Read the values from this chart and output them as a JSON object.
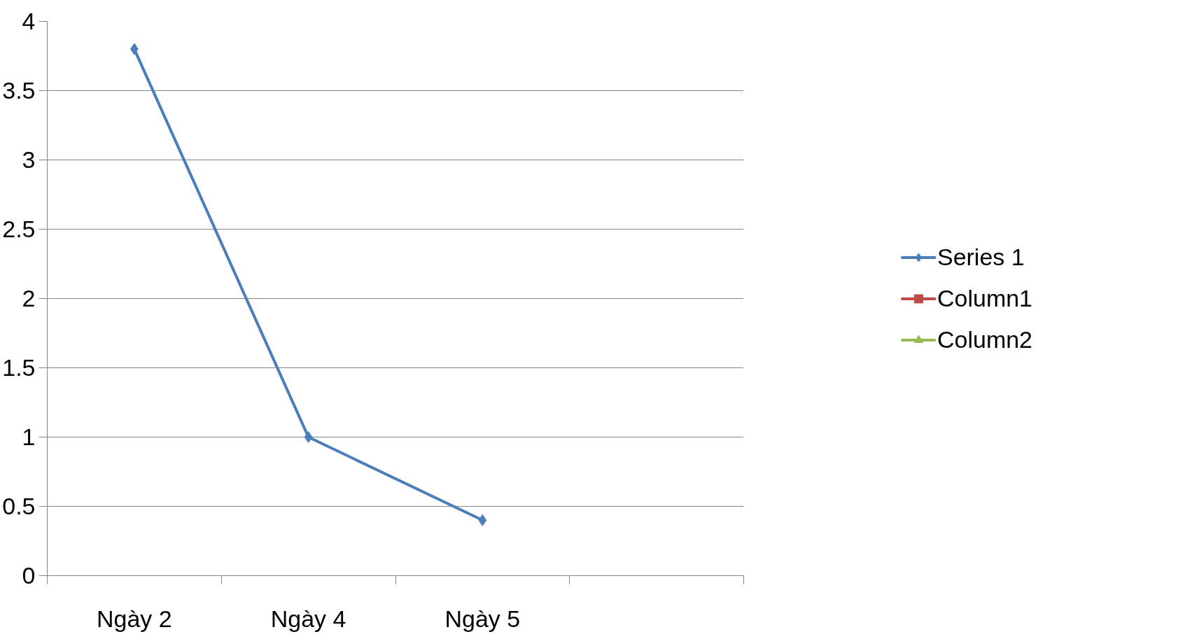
{
  "chart_data": {
    "type": "line",
    "categories": [
      "Ngày 2",
      "Ngày 4",
      "Ngày 5",
      null
    ],
    "series": [
      {
        "name": "Series 1",
        "color": "#4a7ebb",
        "marker": "diamond",
        "values": [
          3.8,
          1,
          0.4,
          null
        ]
      },
      {
        "name": "Column1",
        "color": "#be4b48",
        "marker": "square",
        "values": [
          null,
          null,
          null,
          null
        ]
      },
      {
        "name": "Column2",
        "color": "#98b954",
        "marker": "triangle",
        "values": [
          null,
          null,
          null,
          null
        ]
      }
    ],
    "ylim": [
      0,
      4
    ],
    "yticks": [
      0,
      0.5,
      1,
      1.5,
      2,
      2.5,
      3,
      3.5,
      4
    ],
    "grid": "y",
    "legend": "right",
    "line_style": "solid"
  }
}
